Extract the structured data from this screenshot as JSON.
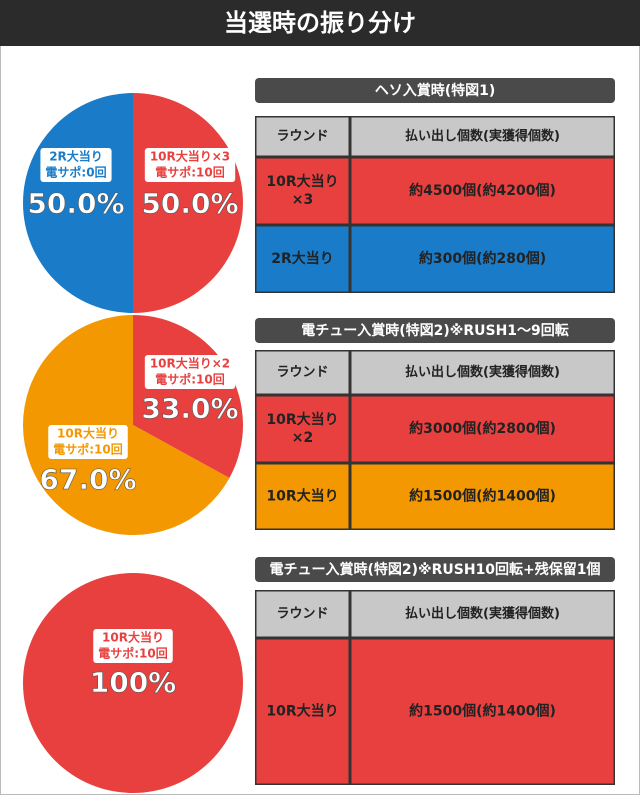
{
  "title": "当選時の振り分け",
  "sections": [
    {
      "heading": "ヘソ入賞時(特図1)",
      "pie": {
        "type": "pie",
        "values": [
          50,
          50
        ],
        "value_labels": [
          "50.0%",
          "50.0%"
        ],
        "labels": [
          [
            "10R大当り×3",
            "電サポ:10回"
          ],
          [
            "2R大当り",
            "電サポ:0回"
          ]
        ],
        "colors": [
          "#e8403f",
          "#1a7cc9"
        ]
      },
      "table": {
        "header": [
          "ラウンド",
          "払い出し個数(実獲得個数)"
        ],
        "rows": [
          {
            "round": [
              "10R大当り",
              "×3"
            ],
            "payout": "約4500個(約4200個)",
            "color": "#e8403f"
          },
          {
            "round": [
              "2R大当り"
            ],
            "payout": "約300個(約280個)",
            "color": "#1a7cc9"
          }
        ]
      }
    },
    {
      "heading": "電チュー入賞時(特図2)※RUSH1〜9回転",
      "pie": {
        "type": "pie",
        "values": [
          33,
          67
        ],
        "value_labels": [
          "33.0%",
          "67.0%"
        ],
        "labels": [
          [
            "10R大当り×2",
            "電サポ:10回"
          ],
          [
            "10R大当り",
            "電サポ:10回"
          ]
        ],
        "colors": [
          "#e8403f",
          "#f39800"
        ]
      },
      "table": {
        "header": [
          "ラウンド",
          "払い出し個数(実獲得個数)"
        ],
        "rows": [
          {
            "round": [
              "10R大当り",
              "×2"
            ],
            "payout": "約3000個(約2800個)",
            "color": "#e8403f"
          },
          {
            "round": [
              "10R大当り"
            ],
            "payout": "約1500個(約1400個)",
            "color": "#f39800"
          }
        ]
      }
    },
    {
      "heading": "電チュー入賞時(特図2)※RUSH10回転+残保留1個",
      "pie": {
        "type": "pie",
        "values": [
          100
        ],
        "value_labels": [
          "100%"
        ],
        "labels": [
          [
            "10R大当り",
            "電サポ:10回"
          ]
        ],
        "colors": [
          "#e8403f"
        ]
      },
      "table": {
        "header": [
          "ラウンド",
          "払い出し個数(実獲得個数)"
        ],
        "rows": [
          {
            "round": [
              "10R大当り"
            ],
            "payout": "約1500個(約1400個)",
            "color": "#e8403f"
          }
        ]
      }
    }
  ]
}
